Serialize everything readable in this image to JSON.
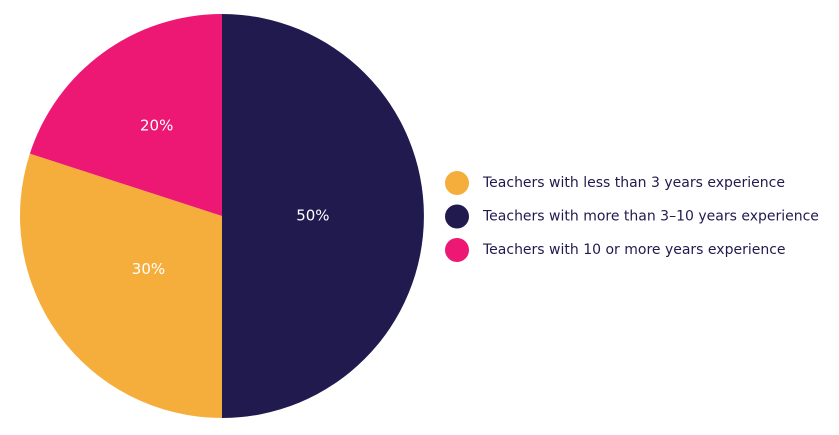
{
  "chart_data": {
    "type": "pie",
    "categories": [
      "Teachers with less than 3 years experience",
      "Teachers with more than 3–10 years experience",
      "Teachers with 10 or more years experience"
    ],
    "values": [
      30,
      50,
      20
    ],
    "value_labels": [
      "30%",
      "50%",
      "20%"
    ],
    "colors": [
      "#f5ad3c",
      "#211a4e",
      "#ec1874"
    ]
  }
}
